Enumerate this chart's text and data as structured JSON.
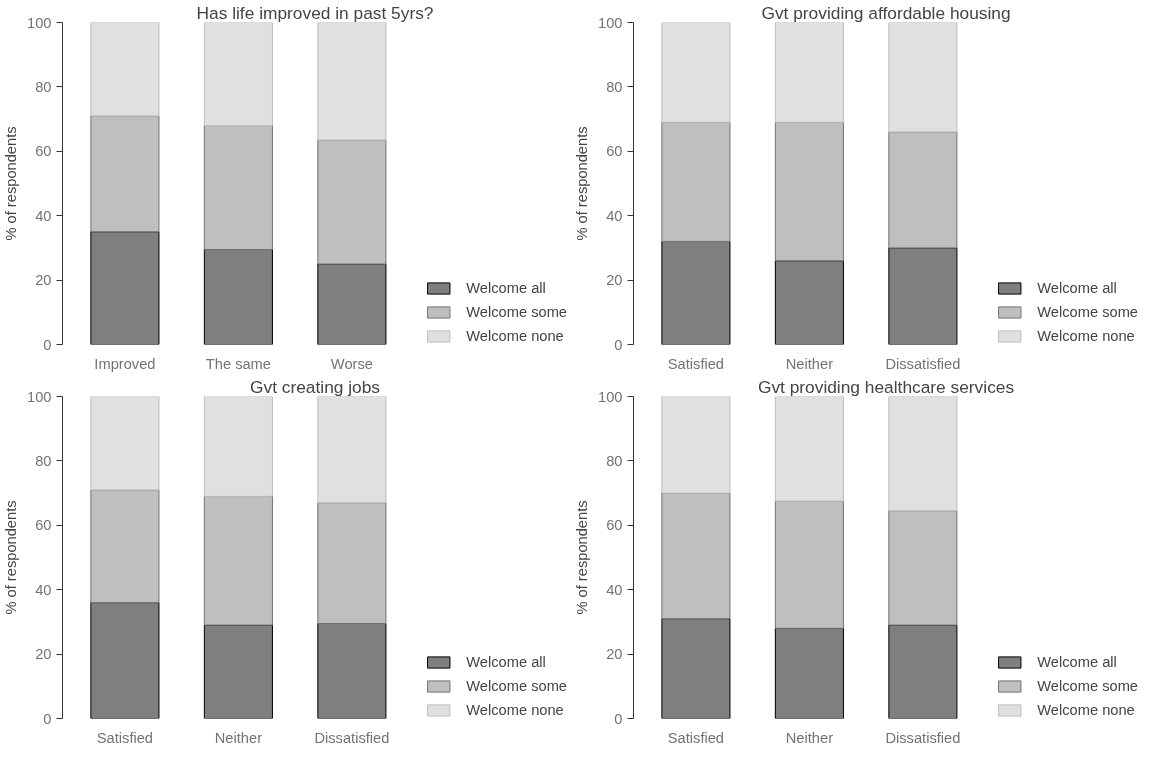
{
  "chart_data": [
    {
      "type": "bar",
      "stacked": true,
      "title": "Has life improved in past 5yrs?",
      "ylabel": "% of respondents",
      "categories": [
        "Improved",
        "The same",
        "Worse"
      ],
      "ylim": [
        0,
        100
      ],
      "yticks": [
        0,
        20,
        40,
        60,
        80,
        100
      ],
      "grid": false,
      "legend": "bottom right",
      "series": [
        {
          "name": "Welcome all",
          "color": "#7f7f7f",
          "values": [
            35,
            29.5,
            25
          ]
        },
        {
          "name": "Welcome some",
          "color": "#bfbfbf",
          "values": [
            36,
            38.5,
            38.5
          ]
        },
        {
          "name": "Welcome none",
          "color": "#e0e0e0",
          "values": [
            29,
            32,
            36.5
          ]
        }
      ]
    },
    {
      "type": "bar",
      "stacked": true,
      "title": "Gvt providing affordable housing",
      "ylabel": "% of respondents",
      "categories": [
        "Satisfied",
        "Neither",
        "Dissatisfied"
      ],
      "ylim": [
        0,
        100
      ],
      "yticks": [
        0,
        20,
        40,
        60,
        80,
        100
      ],
      "grid": false,
      "legend": "bottom right",
      "series": [
        {
          "name": "Welcome all",
          "color": "#7f7f7f",
          "values": [
            32,
            26,
            30
          ]
        },
        {
          "name": "Welcome some",
          "color": "#bfbfbf",
          "values": [
            37,
            43,
            36
          ]
        },
        {
          "name": "Welcome none",
          "color": "#e0e0e0",
          "values": [
            31,
            31,
            34
          ]
        }
      ]
    },
    {
      "type": "bar",
      "stacked": true,
      "title": "Gvt creating jobs",
      "ylabel": "% of respondents",
      "categories": [
        "Satisfied",
        "Neither",
        "Dissatisfied"
      ],
      "ylim": [
        0,
        100
      ],
      "yticks": [
        0,
        20,
        40,
        60,
        80,
        100
      ],
      "grid": false,
      "legend": "bottom right",
      "series": [
        {
          "name": "Welcome all",
          "color": "#7f7f7f",
          "values": [
            36,
            29,
            29.5
          ]
        },
        {
          "name": "Welcome some",
          "color": "#bfbfbf",
          "values": [
            35,
            40,
            37.5
          ]
        },
        {
          "name": "Welcome none",
          "color": "#e0e0e0",
          "values": [
            29,
            31,
            33
          ]
        }
      ]
    },
    {
      "type": "bar",
      "stacked": true,
      "title": "Gvt providing healthcare services",
      "ylabel": "% of respondents",
      "categories": [
        "Satisfied",
        "Neither",
        "Dissatisfied"
      ],
      "ylim": [
        0,
        100
      ],
      "yticks": [
        0,
        20,
        40,
        60,
        80,
        100
      ],
      "grid": false,
      "legend": "bottom right",
      "series": [
        {
          "name": "Welcome all",
          "color": "#7f7f7f",
          "values": [
            31,
            28,
            29
          ]
        },
        {
          "name": "Welcome some",
          "color": "#bfbfbf",
          "values": [
            39,
            39.5,
            35.5
          ]
        },
        {
          "name": "Welcome none",
          "color": "#e0e0e0",
          "values": [
            30,
            32.5,
            35.5
          ]
        }
      ]
    }
  ]
}
